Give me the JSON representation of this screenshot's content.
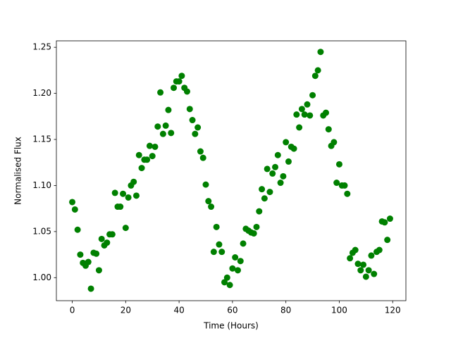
{
  "chart_data": {
    "type": "scatter",
    "xlabel": "Time (Hours)",
    "ylabel": "Normalised Flux",
    "color": "#008000",
    "x": [
      0,
      1,
      2,
      3,
      4,
      5,
      6,
      7,
      8,
      9,
      10,
      11,
      12,
      13,
      14,
      15,
      16,
      17,
      18,
      19,
      20,
      21,
      22,
      23,
      24,
      25,
      26,
      27,
      28,
      29,
      30,
      31,
      32,
      33,
      34,
      35,
      36,
      37,
      38,
      39,
      40,
      41,
      42,
      43,
      44,
      45,
      46,
      47,
      48,
      49,
      50,
      51,
      52,
      53,
      54,
      55,
      56,
      57,
      58,
      59,
      60,
      61,
      62,
      63,
      64,
      65,
      66,
      67,
      68,
      69,
      70,
      71,
      72,
      73,
      74,
      75,
      76,
      77,
      78,
      79,
      80,
      81,
      82,
      83,
      84,
      85,
      86,
      87,
      88,
      89,
      90,
      91,
      92,
      93,
      94,
      95,
      96,
      97,
      98,
      99,
      100,
      101,
      102,
      103,
      104,
      105,
      106,
      107,
      108,
      109,
      110,
      111,
      112,
      113,
      114,
      115,
      116,
      117,
      118,
      119
    ],
    "values": [
      1.082,
      1.074,
      1.052,
      1.025,
      1.016,
      1.013,
      1.017,
      0.988,
      1.027,
      1.026,
      1.008,
      1.042,
      1.035,
      1.038,
      1.047,
      1.047,
      1.092,
      1.077,
      1.077,
      1.091,
      1.054,
      1.087,
      1.1,
      1.104,
      1.089,
      1.133,
      1.119,
      1.128,
      1.128,
      1.143,
      1.132,
      1.142,
      1.164,
      1.201,
      1.156,
      1.165,
      1.182,
      1.157,
      1.206,
      1.213,
      1.213,
      1.219,
      1.206,
      1.202,
      1.183,
      1.171,
      1.156,
      1.163,
      1.137,
      1.13,
      1.101,
      1.083,
      1.077,
      1.028,
      1.055,
      1.036,
      1.028,
      0.995,
      1.0,
      0.992,
      1.01,
      1.022,
      1.008,
      1.018,
      1.037,
      1.053,
      1.051,
      1.049,
      1.048,
      1.055,
      1.072,
      1.096,
      1.086,
      1.118,
      1.093,
      1.113,
      1.12,
      1.133,
      1.103,
      1.11,
      1.147,
      1.126,
      1.142,
      1.14,
      1.177,
      1.163,
      1.183,
      1.177,
      1.188,
      1.176,
      1.198,
      1.219,
      1.225,
      1.245,
      1.176,
      1.179,
      1.161,
      1.143,
      1.147,
      1.103,
      1.123,
      1.1,
      1.1,
      1.091,
      1.021,
      1.027,
      1.03,
      1.015,
      1.008,
      1.014,
      1.001,
      1.008,
      1.024,
      1.004,
      1.028,
      1.03,
      1.061,
      1.06,
      1.041,
      1.064
    ],
    "xlim": [
      -5.95,
      124.95
    ],
    "ylim": [
      0.975,
      1.257
    ],
    "xticks": [
      0,
      20,
      40,
      60,
      80,
      100,
      120
    ],
    "yticks": [
      {
        "value": 1,
        "label": "1.00"
      },
      1.05,
      {
        "value": 1.1,
        "label": "1.10"
      },
      1.15,
      {
        "value": 1.2,
        "label": "1.20"
      },
      1.25
    ]
  }
}
